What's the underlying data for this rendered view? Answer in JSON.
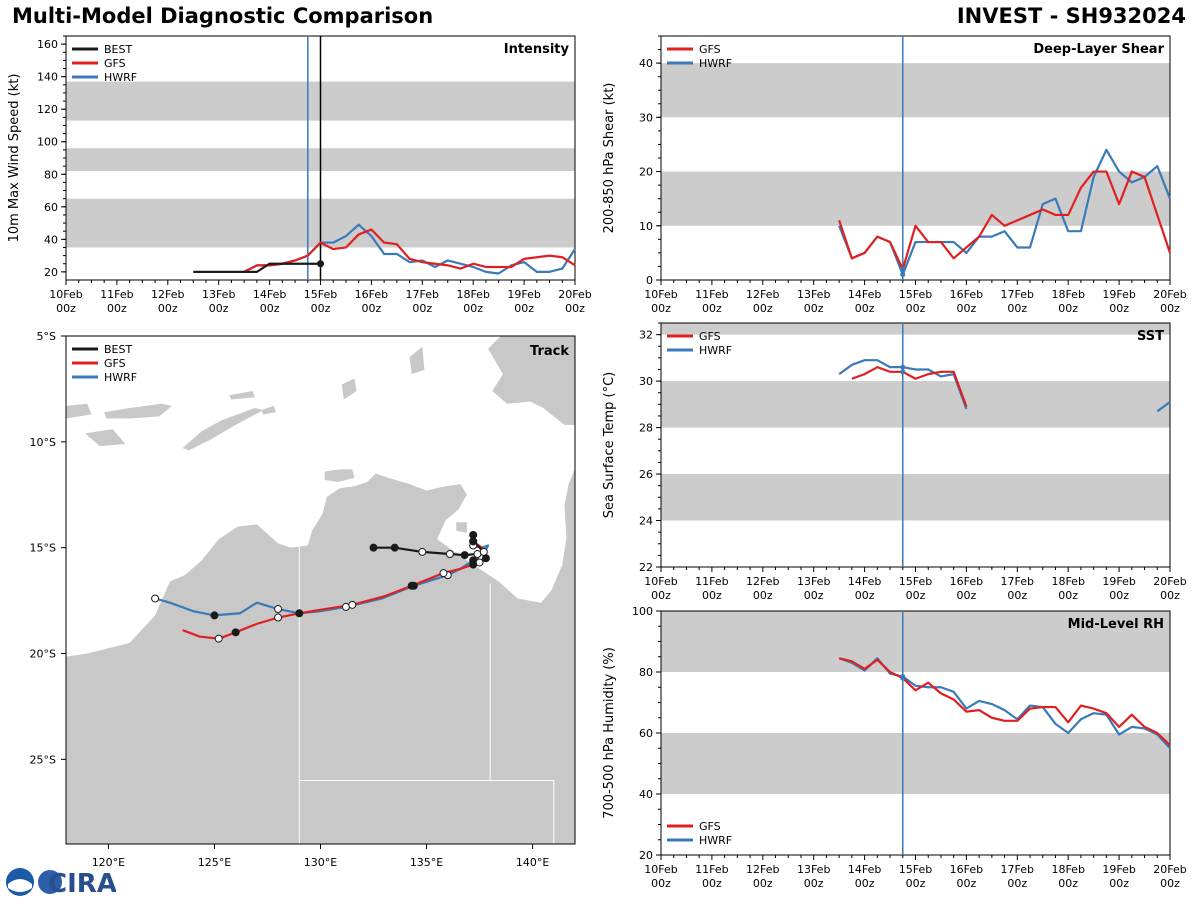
{
  "header": {
    "title_left": "Multi-Model Diagnostic Comparison",
    "title_right": "INVEST - SH932024"
  },
  "logo": {
    "text": "CIRA"
  },
  "colors": {
    "best": "#1a1a1a",
    "gfs": "#e02020",
    "hwrf": "#3a7ab8",
    "band": "#cccccc",
    "land": "#c8c8c8",
    "current": "#3a7ab8"
  },
  "time_axis": {
    "ticks": [
      "10Feb 00z",
      "11Feb 00z",
      "12Feb 00z",
      "13Feb 00z",
      "14Feb 00z",
      "15Feb 00z",
      "16Feb 00z",
      "17Feb 00z",
      "18Feb 00z",
      "19Feb 00z",
      "20Feb 00z"
    ],
    "current_time_day": 4.75
  },
  "chart_data": [
    {
      "id": "intensity",
      "type": "line",
      "title": "Intensity",
      "ylabel": "10m Max Wind Speed (kt)",
      "ylim": [
        15,
        165
      ],
      "yticks": [
        20,
        40,
        60,
        80,
        100,
        120,
        140,
        160
      ],
      "bands": [
        [
          35,
          65
        ],
        [
          82,
          96
        ],
        [
          113,
          137
        ]
      ],
      "best_time_marker_day": 5.0,
      "legend": [
        "BEST",
        "GFS",
        "HWRF"
      ],
      "series": [
        {
          "name": "BEST",
          "x": [
            2.5,
            3.0,
            3.5,
            3.75,
            4.0,
            4.25,
            4.5,
            4.75,
            5.0
          ],
          "y": [
            20,
            20,
            20,
            20,
            25,
            25,
            25,
            25,
            25
          ]
        },
        {
          "name": "GFS",
          "x": [
            3.5,
            3.75,
            4.0,
            4.25,
            4.5,
            4.75,
            5.0,
            5.25,
            5.5,
            5.75,
            6.0,
            6.25,
            6.5,
            6.75,
            7.0,
            7.25,
            7.5,
            7.75,
            8.0,
            8.25,
            8.5,
            8.75,
            9.0,
            9.25,
            9.5,
            9.75,
            10.0
          ],
          "y": [
            20,
            24,
            24,
            25,
            27,
            30,
            38,
            34,
            35,
            43,
            46,
            38,
            37,
            28,
            26,
            25,
            24,
            22,
            25,
            23,
            23,
            23,
            28,
            29,
            30,
            29,
            24
          ]
        },
        {
          "name": "HWRF",
          "x": [
            3.5,
            3.75,
            4.0,
            4.25,
            4.5,
            4.75,
            5.0,
            5.25,
            5.5,
            5.75,
            6.0,
            6.25,
            6.5,
            6.75,
            7.0,
            7.25,
            7.5,
            7.75,
            8.0,
            8.25,
            8.5,
            8.75,
            9.0,
            9.25,
            9.5,
            9.75,
            10.0
          ],
          "y": [
            20,
            24,
            24,
            25,
            27,
            30,
            38,
            38,
            42,
            49,
            42,
            31,
            31,
            26,
            27,
            23,
            27,
            25,
            23,
            20,
            19,
            24,
            26,
            20,
            20,
            22,
            34
          ]
        }
      ]
    },
    {
      "id": "shear",
      "type": "line",
      "title": "Deep-Layer Shear",
      "ylabel": "200-850 hPa Shear (kt)",
      "ylim": [
        0,
        45
      ],
      "yticks": [
        0,
        10,
        20,
        30,
        40
      ],
      "bands": [
        [
          10,
          20
        ],
        [
          30,
          40
        ]
      ],
      "legend": [
        "GFS",
        "HWRF"
      ],
      "series": [
        {
          "name": "GFS",
          "x": [
            3.5,
            3.75,
            4.0,
            4.25,
            4.5,
            4.75,
            5.0,
            5.25,
            5.5,
            5.75,
            6.0,
            6.25,
            6.5,
            6.75,
            7.0,
            7.25,
            7.5,
            7.75,
            8.0,
            8.25,
            8.5,
            8.75,
            9.0,
            9.25,
            9.5,
            9.75,
            10.0
          ],
          "y": [
            11,
            4,
            5,
            8,
            7,
            2,
            10,
            7,
            7,
            4,
            6,
            8,
            12,
            10,
            11,
            12,
            13,
            12,
            12,
            17,
            20,
            20,
            14,
            20,
            19,
            12,
            5
          ]
        },
        {
          "name": "HWRF",
          "x": [
            3.5,
            3.75,
            4.0,
            4.25,
            4.5,
            4.75,
            5.0,
            5.25,
            5.5,
            5.75,
            6.0,
            6.25,
            6.5,
            6.75,
            7.0,
            7.25,
            7.5,
            7.75,
            8.0,
            8.25,
            8.5,
            8.75,
            9.0,
            9.25,
            9.5,
            9.75,
            10.0
          ],
          "y": [
            10,
            4,
            5,
            8,
            7,
            1,
            7,
            7,
            7,
            7,
            5,
            8,
            8,
            9,
            6,
            6,
            14,
            15,
            9,
            9,
            19,
            24,
            20,
            18,
            19,
            21,
            15
          ]
        }
      ]
    },
    {
      "id": "track",
      "type": "line",
      "title": "Track",
      "xlim": [
        118,
        142
      ],
      "ylim": [
        -29,
        -5
      ],
      "xticks": [
        120,
        125,
        130,
        135,
        140
      ],
      "xtick_labels": [
        "120°E",
        "125°E",
        "130°E",
        "135°E",
        "140°E"
      ],
      "yticks": [
        -5,
        -10,
        -15,
        -20,
        -25
      ],
      "ytick_labels": [
        "5°S",
        "10°S",
        "15°S",
        "20°S",
        "25°S"
      ],
      "legend": [
        "BEST",
        "GFS",
        "HWRF"
      ],
      "series": [
        {
          "name": "BEST",
          "lon": [
            132.5,
            133.5,
            134.8,
            136.1,
            136.8,
            137.4,
            137.7,
            137.2,
            137.2
          ],
          "lat": [
            -15.0,
            -15.0,
            -15.2,
            -15.3,
            -15.35,
            -15.3,
            -15.2,
            -14.7,
            -14.4
          ],
          "filled": [
            1,
            1,
            0,
            0,
            1,
            0,
            0,
            1,
            1
          ]
        },
        {
          "name": "GFS",
          "lon": [
            137.2,
            137.6,
            137.8,
            137.5,
            137.2,
            136.6,
            135.8,
            134.3,
            133.0,
            131.5,
            130.2,
            129.0,
            128.0,
            127.0,
            126.0,
            125.2,
            124.3,
            123.5
          ],
          "lat": [
            -14.7,
            -15.0,
            -15.5,
            -15.7,
            -15.8,
            -16.0,
            -16.2,
            -16.8,
            -17.3,
            -17.7,
            -17.9,
            -18.1,
            -18.3,
            -18.6,
            -19.0,
            -19.3,
            -19.2,
            -18.9
          ],
          "filled": [
            0,
            0,
            1,
            0,
            1,
            0,
            0,
            1,
            0,
            0,
            0,
            1,
            0,
            0,
            1,
            0,
            0,
            0
          ]
        },
        {
          "name": "HWRF",
          "lon": [
            137.2,
            137.6,
            137.9,
            137.6,
            137.2,
            136.6,
            136.0,
            134.4,
            132.9,
            131.2,
            130.0,
            129.0,
            128.0,
            127.0,
            126.2,
            125.0,
            124.0,
            122.9,
            122.2
          ],
          "lat": [
            -14.9,
            -15.0,
            -14.9,
            -15.5,
            -15.6,
            -16.0,
            -16.3,
            -16.8,
            -17.4,
            -17.8,
            -18.0,
            -18.1,
            -17.9,
            -17.6,
            -18.1,
            -18.2,
            -18.0,
            -17.6,
            -17.4
          ],
          "filled": [
            0,
            0,
            0,
            0,
            1,
            0,
            0,
            1,
            0,
            0,
            0,
            0,
            0,
            0,
            0,
            1,
            0,
            0,
            0
          ]
        }
      ]
    },
    {
      "id": "sst",
      "type": "line",
      "title": "SST",
      "ylabel": "Sea Surface Temp (°C)",
      "ylim": [
        22,
        32.5
      ],
      "yticks": [
        22,
        24,
        26,
        28,
        30,
        32
      ],
      "bands": [
        [
          24,
          26
        ],
        [
          28,
          30
        ],
        [
          32,
          32.5
        ]
      ],
      "legend": [
        "GFS",
        "HWRF"
      ],
      "series": [
        {
          "name": "GFS",
          "x": [
            3.75,
            4.0,
            4.25,
            4.5,
            4.75,
            5.0,
            5.25,
            5.5,
            5.75,
            6.0
          ],
          "y": [
            30.1,
            30.3,
            30.6,
            30.4,
            30.4,
            30.1,
            30.3,
            30.4,
            30.4,
            28.9
          ]
        },
        {
          "name": "HWRF",
          "x": [
            3.5,
            3.75,
            4.0,
            4.25,
            4.5,
            4.75,
            5.0,
            5.25,
            5.5,
            5.75,
            6.0
          ],
          "y": [
            30.3,
            30.7,
            30.9,
            30.9,
            30.6,
            30.6,
            30.5,
            30.5,
            30.2,
            30.3,
            28.8
          ],
          "extra_x": [
            9.75,
            10.0
          ],
          "extra_y": [
            28.7,
            29.1
          ]
        }
      ]
    },
    {
      "id": "rh",
      "type": "line",
      "title": "Mid-Level RH",
      "ylabel": "700-500 hPa Humidity (%)",
      "ylim": [
        20,
        100
      ],
      "yticks": [
        20,
        40,
        60,
        80,
        100
      ],
      "bands": [
        [
          40,
          60
        ],
        [
          80,
          100
        ]
      ],
      "legend": [
        "GFS",
        "HWRF"
      ],
      "series": [
        {
          "name": "GFS",
          "x": [
            3.5,
            3.75,
            4.0,
            4.25,
            4.5,
            4.75,
            5.0,
            5.25,
            5.5,
            5.75,
            6.0,
            6.25,
            6.5,
            6.75,
            7.0,
            7.25,
            7.5,
            7.75,
            8.0,
            8.25,
            8.5,
            8.75,
            9.0,
            9.25,
            9.5,
            9.75,
            10.0
          ],
          "y": [
            84.5,
            83.5,
            81,
            84,
            80,
            78,
            74,
            76.5,
            73,
            71,
            67,
            67.5,
            65,
            64,
            64,
            68,
            68.5,
            68.5,
            63.5,
            69,
            68,
            66.5,
            62,
            66,
            62,
            60,
            56
          ]
        },
        {
          "name": "HWRF",
          "x": [
            3.5,
            3.75,
            4.0,
            4.25,
            4.5,
            4.75,
            5.0,
            5.25,
            5.5,
            5.75,
            6.0,
            6.25,
            6.5,
            6.75,
            7.0,
            7.25,
            7.5,
            7.75,
            8.0,
            8.25,
            8.5,
            8.75,
            9.0,
            9.25,
            9.5,
            9.75,
            10.0
          ],
          "y": [
            84.5,
            83,
            80.5,
            84.5,
            79.5,
            78.5,
            75.5,
            75,
            75,
            73.5,
            68,
            70.5,
            69.5,
            67.5,
            64.5,
            69,
            68.5,
            63,
            60,
            64.5,
            66.5,
            66,
            59.5,
            62,
            61.5,
            59.5,
            55
          ]
        }
      ]
    }
  ]
}
